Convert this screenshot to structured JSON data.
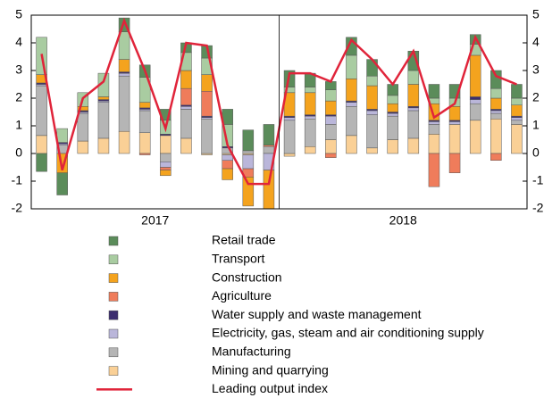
{
  "chart_data": {
    "type": "bar",
    "stacked": true,
    "categories": [
      null,
      null,
      null,
      null,
      null,
      null,
      null,
      null,
      null,
      null,
      null,
      null,
      null,
      null,
      null,
      null,
      null,
      null,
      null,
      null,
      null,
      null,
      null,
      null
    ],
    "x_groups": [
      "2017",
      "2018"
    ],
    "ylim": [
      -2,
      5
    ],
    "yticks": [
      -2,
      -1,
      0,
      1,
      2,
      3,
      4,
      5
    ],
    "y2lim": [
      -2,
      5
    ],
    "y2ticks": [
      -2,
      -1,
      0,
      1,
      2,
      3,
      4,
      5
    ],
    "series": [
      {
        "name": "Retail trade",
        "color": "#5b8c5a",
        "values": [
          -0.65,
          -0.8,
          0,
          0,
          0.5,
          0.45,
          0.4,
          0.35,
          0.45,
          0.55,
          0.75,
          0.75,
          0.6,
          0.5,
          0.3,
          0.65,
          0.6,
          0.4,
          0.7,
          0.5,
          0.5,
          0.35,
          0.65,
          0.5
        ]
      },
      {
        "name": "Transport",
        "color": "#a9cca1",
        "values": [
          1.35,
          0.5,
          0.5,
          0.85,
          1.0,
          0.9,
          0.5,
          0.65,
          0.6,
          0.8,
          0,
          0,
          0.2,
          0.2,
          0.4,
          0.85,
          0.35,
          0.3,
          0.5,
          0.2,
          0.3,
          0.4,
          0.35,
          0.25
        ]
      },
      {
        "name": "Construction",
        "color": "#f4a31e",
        "values": [
          0.3,
          -0.7,
          0.15,
          0.1,
          0.45,
          0.2,
          -0.2,
          0.65,
          0.6,
          -0.4,
          -1.05,
          -1.4,
          0.85,
          0.8,
          0.5,
          0.8,
          0.85,
          0.3,
          0.8,
          0.6,
          0.5,
          1.5,
          0.4,
          0.4
        ]
      },
      {
        "name": "Agriculture",
        "color": "#ef7c5b",
        "values": [
          0,
          0,
          0,
          0,
          0,
          -0.05,
          -0.1,
          0.6,
          0.9,
          -0.3,
          -0.3,
          0.05,
          0,
          0,
          -0.15,
          0,
          0,
          0,
          0,
          -1.2,
          -0.7,
          0,
          -0.25,
          0
        ]
      },
      {
        "name": "Water supply and waste management",
        "color": "#3d2e6f",
        "values": [
          0.05,
          0.05,
          0.05,
          0.05,
          0.05,
          0.05,
          0.05,
          0.05,
          0.05,
          0.05,
          0,
          0,
          0.05,
          0.05,
          0.05,
          0.05,
          0.05,
          0.05,
          0.05,
          0.05,
          0.05,
          0.1,
          0.05,
          0.05
        ]
      },
      {
        "name": "Electricity, gas, steam and air conditioning supply",
        "color": "#bab6da",
        "values": [
          0.05,
          0.05,
          0.05,
          0.05,
          0.1,
          0.05,
          -0.2,
          0.1,
          0.05,
          -0.2,
          -0.5,
          -0.6,
          0.1,
          0.1,
          0.3,
          0.15,
          0.15,
          0.1,
          0.1,
          0.1,
          0.1,
          0.15,
          0.1,
          0.1
        ]
      },
      {
        "name": "Manufacturing",
        "color": "#b5b5b5",
        "values": [
          1.8,
          0.3,
          1.0,
          1.3,
          2.0,
          0.8,
          -0.3,
          1.05,
          1.25,
          0.2,
          0.1,
          0.25,
          1.2,
          1.0,
          0.55,
          1.05,
          1.2,
          0.85,
          1.0,
          0.35,
          0,
          0.6,
          0.2,
          0.15
        ]
      },
      {
        "name": "Mining and quarrying",
        "color": "#fad096",
        "values": [
          0.65,
          0,
          0.45,
          0.55,
          0.8,
          0.75,
          0.65,
          0.55,
          -0.05,
          -0.05,
          -0.05,
          0,
          -0.1,
          0.25,
          0.5,
          0.65,
          0.2,
          0.5,
          0.55,
          0.7,
          1.05,
          1.2,
          1.25,
          1.05
        ]
      },
      {
        "name": "Leading output index",
        "color": "#e0243a",
        "type": "line",
        "values": [
          3.6,
          -0.6,
          2.0,
          2.6,
          4.8,
          3.0,
          0.9,
          4.0,
          3.9,
          0.3,
          -1.1,
          -1.1,
          2.9,
          2.9,
          2.6,
          4.1,
          3.4,
          2.5,
          3.7,
          1.3,
          1.8,
          4.2,
          2.8,
          2.5
        ]
      }
    ]
  }
}
